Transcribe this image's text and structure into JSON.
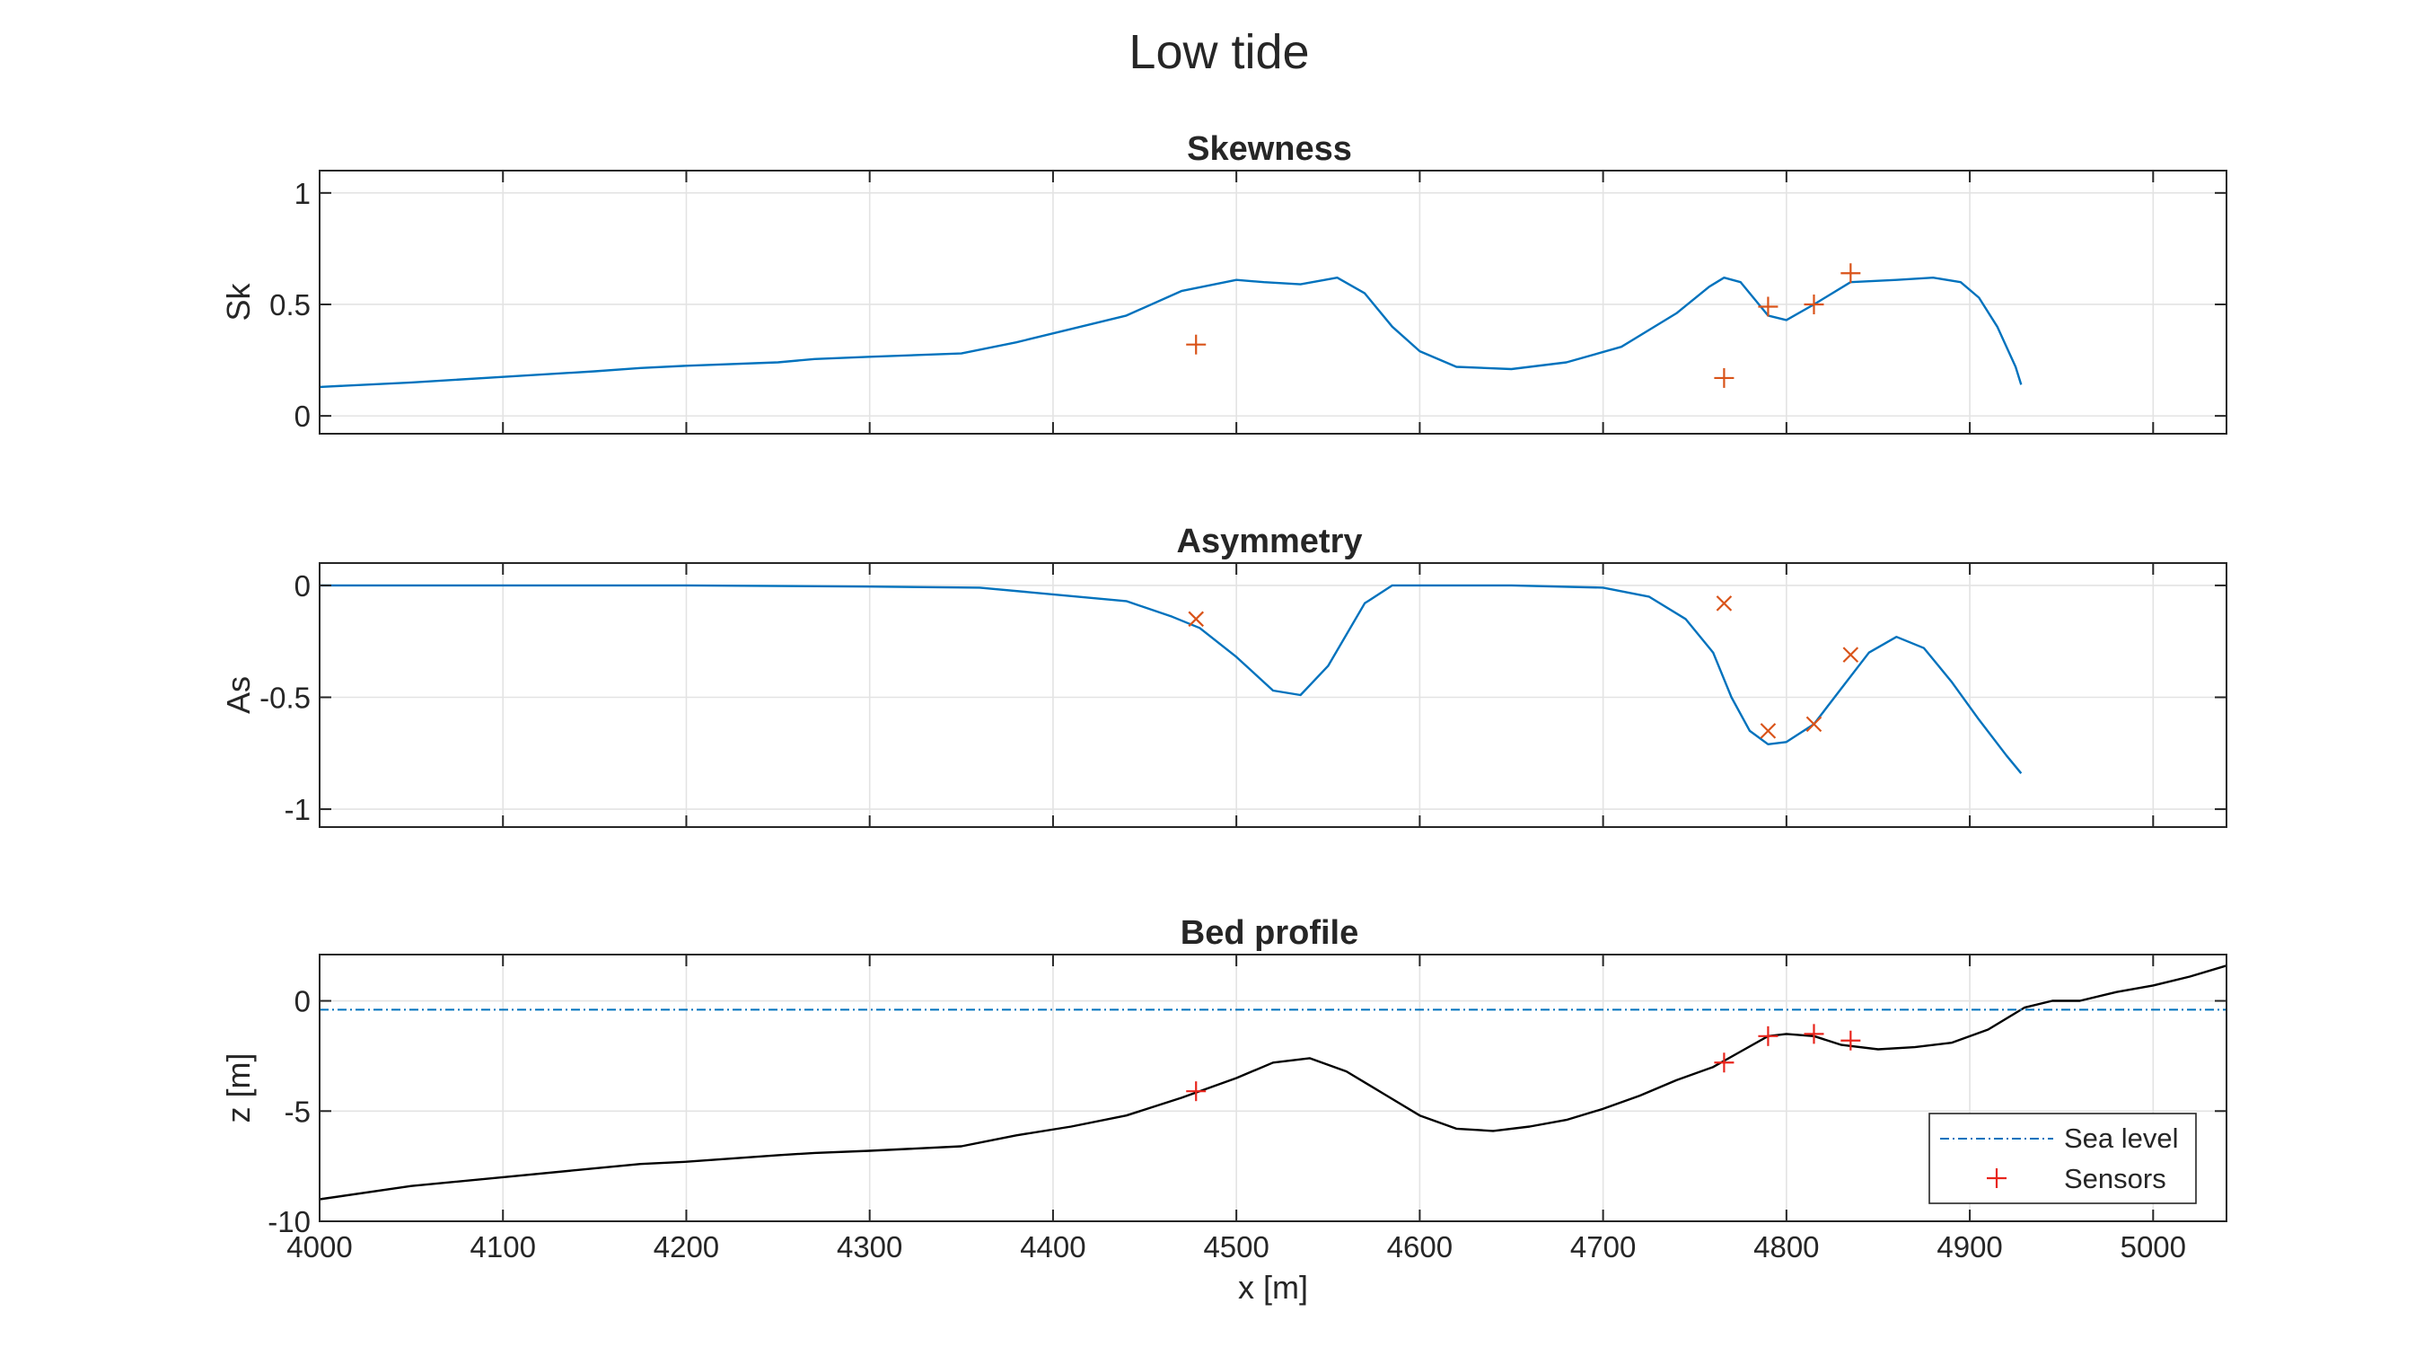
{
  "figure": {
    "title": "Low tide"
  },
  "chart_data": [
    {
      "type": "line",
      "title": "Skewness",
      "xlabel": "",
      "ylabel": "Sk",
      "xlim": [
        4000,
        5040
      ],
      "ylim": [
        -0.08,
        1.1
      ],
      "xticks": [
        4000,
        4100,
        4200,
        4300,
        4400,
        4500,
        4600,
        4700,
        4800,
        4900,
        5000
      ],
      "yticks": [
        0,
        0.5,
        1
      ],
      "ytick_labels": [
        "0",
        "0.5",
        "1"
      ],
      "grid": true,
      "series": [
        {
          "kind": "line",
          "color": "#0072BD",
          "x": [
            4000,
            4050,
            4100,
            4150,
            4175,
            4200,
            4250,
            4270,
            4300,
            4350,
            4380,
            4410,
            4440,
            4470,
            4500,
            4515,
            4535,
            4555,
            4570,
            4585,
            4600,
            4620,
            4650,
            4680,
            4710,
            4740,
            4758,
            4766,
            4775,
            4790,
            4800,
            4815,
            4835,
            4860,
            4880,
            4895,
            4905,
            4915,
            4925,
            4928
          ],
          "y": [
            0.13,
            0.15,
            0.175,
            0.2,
            0.215,
            0.225,
            0.24,
            0.255,
            0.265,
            0.28,
            0.33,
            0.39,
            0.45,
            0.56,
            0.61,
            0.6,
            0.59,
            0.62,
            0.55,
            0.4,
            0.29,
            0.22,
            0.21,
            0.24,
            0.31,
            0.46,
            0.58,
            0.62,
            0.6,
            0.45,
            0.43,
            0.5,
            0.6,
            0.61,
            0.62,
            0.6,
            0.53,
            0.4,
            0.22,
            0.14
          ]
        },
        {
          "kind": "markers",
          "marker": "+",
          "color": "#D95319",
          "x": [
            4478,
            4766,
            4790,
            4815,
            4835
          ],
          "y": [
            0.32,
            0.17,
            0.49,
            0.5,
            0.64
          ]
        }
      ]
    },
    {
      "type": "line",
      "title": "Asymmetry",
      "xlabel": "",
      "ylabel": "As",
      "xlim": [
        4000,
        5040
      ],
      "ylim": [
        -1.08,
        0.1
      ],
      "xticks": [
        4000,
        4100,
        4200,
        4300,
        4400,
        4500,
        4600,
        4700,
        4800,
        4900,
        5000
      ],
      "yticks": [
        0,
        -0.5,
        -1
      ],
      "ytick_labels": [
        "0",
        "-0.5",
        "-1"
      ],
      "grid": true,
      "series": [
        {
          "kind": "line",
          "color": "#0072BD",
          "x": [
            4000,
            4100,
            4200,
            4300,
            4360,
            4400,
            4440,
            4465,
            4480,
            4500,
            4520,
            4535,
            4550,
            4570,
            4585,
            4600,
            4650,
            4700,
            4725,
            4745,
            4760,
            4770,
            4780,
            4790,
            4800,
            4815,
            4830,
            4845,
            4860,
            4875,
            4890,
            4905,
            4920,
            4928
          ],
          "y": [
            0,
            0,
            0,
            -0.005,
            -0.01,
            -0.04,
            -0.07,
            -0.14,
            -0.19,
            -0.32,
            -0.47,
            -0.49,
            -0.36,
            -0.08,
            0,
            0,
            0,
            -0.01,
            -0.05,
            -0.15,
            -0.3,
            -0.5,
            -0.65,
            -0.71,
            -0.7,
            -0.62,
            -0.46,
            -0.3,
            -0.23,
            -0.28,
            -0.43,
            -0.6,
            -0.76,
            -0.84
          ]
        },
        {
          "kind": "markers",
          "marker": "x",
          "color": "#D95319",
          "x": [
            4478,
            4766,
            4790,
            4815,
            4835
          ],
          "y": [
            -0.15,
            -0.08,
            -0.65,
            -0.62,
            -0.31
          ]
        }
      ]
    },
    {
      "type": "line",
      "title": "Bed profile",
      "xlabel": "x [m]",
      "ylabel": "z [m]",
      "xlim": [
        4000,
        5040
      ],
      "ylim": [
        -10,
        2.1
      ],
      "xticks": [
        4000,
        4100,
        4200,
        4300,
        4400,
        4500,
        4600,
        4700,
        4800,
        4900,
        5000
      ],
      "xtick_labels": [
        "4000",
        "4100",
        "4200",
        "4300",
        "4400",
        "4500",
        "4600",
        "4700",
        "4800",
        "4900",
        "5000"
      ],
      "yticks": [
        0,
        -5,
        -10
      ],
      "ytick_labels": [
        "0",
        "-5",
        "-10"
      ],
      "grid": true,
      "legend": {
        "location": "bottom-right",
        "entries": [
          "Sea level",
          "Sensors"
        ]
      },
      "series": [
        {
          "kind": "line",
          "color": "#000000",
          "x": [
            4000,
            4050,
            4100,
            4150,
            4175,
            4200,
            4250,
            4270,
            4300,
            4350,
            4380,
            4410,
            4440,
            4470,
            4500,
            4520,
            4540,
            4560,
            4580,
            4600,
            4620,
            4640,
            4660,
            4680,
            4700,
            4720,
            4740,
            4760,
            4775,
            4790,
            4800,
            4815,
            4830,
            4850,
            4870,
            4890,
            4910,
            4930,
            4945,
            4960,
            4980,
            5000,
            5020,
            5040
          ],
          "y": [
            -9.0,
            -8.4,
            -8.0,
            -7.6,
            -7.4,
            -7.3,
            -7.0,
            -6.9,
            -6.8,
            -6.6,
            -6.1,
            -5.7,
            -5.2,
            -4.4,
            -3.5,
            -2.8,
            -2.6,
            -3.2,
            -4.2,
            -5.2,
            -5.8,
            -5.9,
            -5.7,
            -5.4,
            -4.9,
            -4.3,
            -3.6,
            -3.0,
            -2.3,
            -1.6,
            -1.5,
            -1.6,
            -2.0,
            -2.2,
            -2.1,
            -1.9,
            -1.3,
            -0.3,
            0.0,
            0.0,
            0.4,
            0.7,
            1.1,
            1.6
          ]
        },
        {
          "kind": "hline",
          "name": "Sea level",
          "color": "#0072BD",
          "style": "dash-dot",
          "y": -0.4
        },
        {
          "kind": "markers",
          "name": "Sensors",
          "marker": "+",
          "color": "#E8251C",
          "x": [
            4478,
            4766,
            4790,
            4815,
            4835
          ],
          "y": [
            -4.1,
            -2.8,
            -1.6,
            -1.5,
            -1.8
          ]
        }
      ]
    }
  ]
}
